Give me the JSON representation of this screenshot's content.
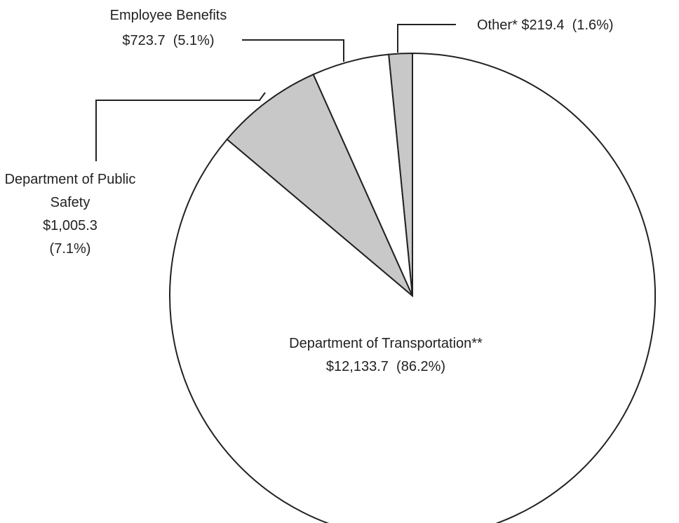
{
  "chart_data": {
    "type": "pie",
    "categories": [
      "Department of Transportation**",
      "Department of Public Safety",
      "Employee Benefits",
      "Other*"
    ],
    "values": [
      12133.7,
      1005.3,
      723.7,
      219.4
    ],
    "value_labels": [
      "$12,133.7",
      "$1,005.3",
      "$723.7",
      "$219.4"
    ],
    "percents": [
      86.2,
      7.1,
      5.1,
      1.6
    ],
    "percent_labels": [
      "(86.2%)",
      "(7.1%)",
      "(5.1%)",
      "(1.6%)"
    ],
    "colors": [
      "#ffffff",
      "#c8c8c8",
      "#ffffff",
      "#c8c8c8"
    ]
  }
}
